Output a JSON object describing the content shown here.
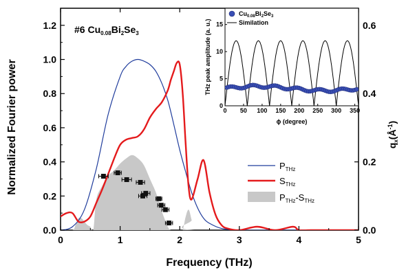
{
  "chart_data": {
    "type": "line",
    "sample_label": {
      "prefix": "#6 Cu",
      "sub1": "0.08",
      "mid": "Bi",
      "sub2": "2",
      "mid2": "Se",
      "sub3": "3"
    },
    "xlabel": "Frequency (THz)",
    "ylabel": "Normalized Fourier power",
    "y2label": {
      "main": "q",
      "sub": "x",
      "unit": "(Å",
      "sup": "-1",
      "close": ")"
    },
    "xlim": [
      0,
      5
    ],
    "ylim": [
      0,
      1.3
    ],
    "y2lim": [
      0,
      0.65
    ],
    "x_ticks": [
      "0",
      "1",
      "2",
      "3",
      "4",
      "5"
    ],
    "y_ticks": [
      "0.0",
      "0.2",
      "0.4",
      "0.6",
      "0.8",
      "1.0",
      "1.2"
    ],
    "y2_ticks": [
      "0.0",
      "0.2",
      "0.4",
      "0.6"
    ],
    "colors": {
      "p_thz": "#1f3c9c",
      "s_thz": "#e41a1c",
      "diff_fill": "#c8c8c8",
      "points": "#111111"
    },
    "series": [
      {
        "name": "P_THz",
        "x": [
          0,
          0.2,
          0.4,
          0.6,
          0.8,
          1.0,
          1.1,
          1.2,
          1.3,
          1.4,
          1.5,
          1.6,
          1.7,
          1.8,
          1.9,
          2.0,
          2.1,
          2.2,
          2.3,
          2.4,
          2.5,
          2.7,
          3.0,
          3.5,
          4.0,
          5.0
        ],
        "y": [
          0.0,
          0.02,
          0.12,
          0.36,
          0.68,
          0.9,
          0.96,
          0.99,
          1.0,
          0.99,
          0.97,
          0.93,
          0.86,
          0.76,
          0.62,
          0.47,
          0.34,
          0.22,
          0.13,
          0.07,
          0.04,
          0.01,
          0.0,
          0.0,
          0.0,
          0.0
        ]
      },
      {
        "name": "S_THz",
        "x": [
          0,
          0.1,
          0.2,
          0.3,
          0.4,
          0.5,
          0.6,
          0.7,
          0.8,
          0.9,
          1.0,
          1.1,
          1.2,
          1.3,
          1.4,
          1.5,
          1.6,
          1.7,
          1.8,
          1.85,
          1.9,
          1.95,
          2.0,
          2.05,
          2.1,
          2.15,
          2.2,
          2.3,
          2.4,
          2.5,
          2.6,
          2.7,
          2.8,
          3.0,
          3.3,
          3.6,
          3.9,
          4.0,
          4.2,
          4.5,
          5.0
        ],
        "y": [
          0.08,
          0.1,
          0.1,
          0.05,
          0.05,
          0.08,
          0.16,
          0.24,
          0.33,
          0.42,
          0.5,
          0.53,
          0.54,
          0.55,
          0.59,
          0.66,
          0.71,
          0.75,
          0.82,
          0.88,
          0.93,
          0.98,
          0.97,
          0.8,
          0.5,
          0.25,
          0.18,
          0.3,
          0.41,
          0.22,
          0.09,
          0.03,
          0.01,
          0.0,
          0.02,
          0.0,
          0.02,
          0.0,
          0.0,
          0.0,
          0.0
        ]
      },
      {
        "name": "P_THz-S_THz",
        "x": [
          0,
          0.2,
          0.25,
          0.3,
          0.35,
          0.4,
          0.45,
          0.5,
          0.55,
          0.6,
          0.7,
          0.8,
          0.9,
          1.0,
          1.1,
          1.2,
          1.3,
          1.4,
          1.5,
          1.6,
          1.7,
          1.8,
          1.85,
          1.9,
          1.92,
          1.95,
          1.98,
          2.0,
          2.05,
          2.1,
          2.15,
          2.2,
          2.25,
          5.0
        ],
        "y": [
          0,
          0,
          0.03,
          0.07,
          0.07,
          0.05,
          0.03,
          0.02,
          0.0,
          0.18,
          0.26,
          0.32,
          0.35,
          0.39,
          0.42,
          0.44,
          0.42,
          0.38,
          0.3,
          0.22,
          0.11,
          0.02,
          0.0,
          0.0,
          0.0,
          0.0,
          0.0,
          0.0,
          0.0,
          0.08,
          0.12,
          0.06,
          0.0,
          0
        ]
      },
      {
        "name": "q_x points",
        "axis": "right",
        "x": [
          0.72,
          0.96,
          1.11,
          1.34,
          1.38,
          1.43,
          1.65,
          1.69,
          1.76,
          1.82
        ],
        "y": [
          0.158,
          0.168,
          0.148,
          0.14,
          0.1,
          0.108,
          0.092,
          0.073,
          0.06,
          0.021
        ],
        "xerr": [
          0.08,
          0.06,
          0.08,
          0.07,
          0.07,
          0.07,
          0.05,
          0.06,
          0.06,
          0.06
        ]
      }
    ],
    "legend": [
      {
        "main": "P",
        "sub": "THz"
      },
      {
        "main": "S",
        "sub": "THz"
      },
      {
        "main": "P",
        "sub": "THz",
        "mid": "-S",
        "sub2": "THz"
      }
    ],
    "inset": {
      "xlabel": "ϕ (degree)",
      "ylabel": "THz peak amplitude (a. u.)",
      "xlim": [
        0,
        360
      ],
      "ylim": [
        0,
        18
      ],
      "x_ticks": [
        "0",
        "50",
        "100",
        "150",
        "200",
        "250",
        "300",
        "350"
      ],
      "y_ticks": [
        "0",
        "5",
        "10",
        "15"
      ],
      "legend": [
        {
          "main": "Cu",
          "sub": "0.08",
          "mid": "Bi",
          "sub2": "2",
          "mid2": "Se",
          "sub3": "3"
        },
        {
          "main": "Similation"
        }
      ],
      "simulation": {
        "amplitude": 12,
        "period_deg": 60,
        "phase_deg": 0
      },
      "data_mean": 3.2,
      "data_ripple": 0.4
    }
  }
}
